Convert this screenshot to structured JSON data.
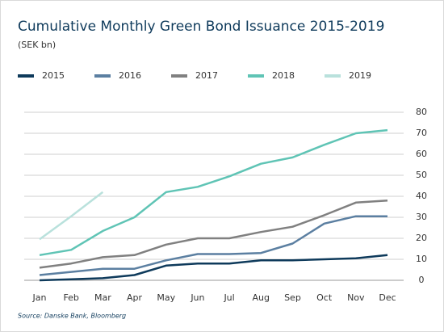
{
  "chart_data": {
    "type": "line",
    "title": "Cumulative Monthly Green Bond Issuance 2015-2019",
    "subtitle": "(SEK bn)",
    "source": "Source: Danske Bank, Bloomberg",
    "categories": [
      "Jan",
      "Feb",
      "Mar",
      "Apr",
      "May",
      "Jun",
      "Jul",
      "Aug",
      "Sep",
      "Oct",
      "Nov",
      "Dec"
    ],
    "series": [
      {
        "name": "2015",
        "color": "#0e3a5b",
        "values": [
          0,
          0.5,
          1,
          2.5,
          7,
          8,
          8,
          9.5,
          9.5,
          10,
          10.5,
          12
        ]
      },
      {
        "name": "2016",
        "color": "#5b7fa1",
        "values": [
          2.5,
          4,
          5.5,
          5.5,
          9.5,
          12.5,
          12.5,
          13,
          17.5,
          27,
          30.5,
          30.5
        ]
      },
      {
        "name": "2017",
        "color": "#808080",
        "values": [
          6,
          8,
          11,
          12,
          17,
          20,
          20,
          23,
          25.5,
          31,
          37,
          38
        ]
      },
      {
        "name": "2018",
        "color": "#5fc4b5",
        "values": [
          12,
          14.5,
          23.5,
          30,
          42,
          44.5,
          49.5,
          55.5,
          58.5,
          64.5,
          70,
          71.5
        ]
      },
      {
        "name": "2019",
        "color": "#b9e1dc",
        "values": [
          19.5,
          30.5,
          42,
          null,
          null,
          null,
          null,
          null,
          null,
          null,
          null,
          null
        ]
      }
    ],
    "ylim": [
      0,
      80
    ],
    "yticks": [
      0,
      10,
      20,
      30,
      40,
      50,
      60,
      70,
      80
    ],
    "y_axis_side": "right",
    "grid": true,
    "legend": "top"
  }
}
